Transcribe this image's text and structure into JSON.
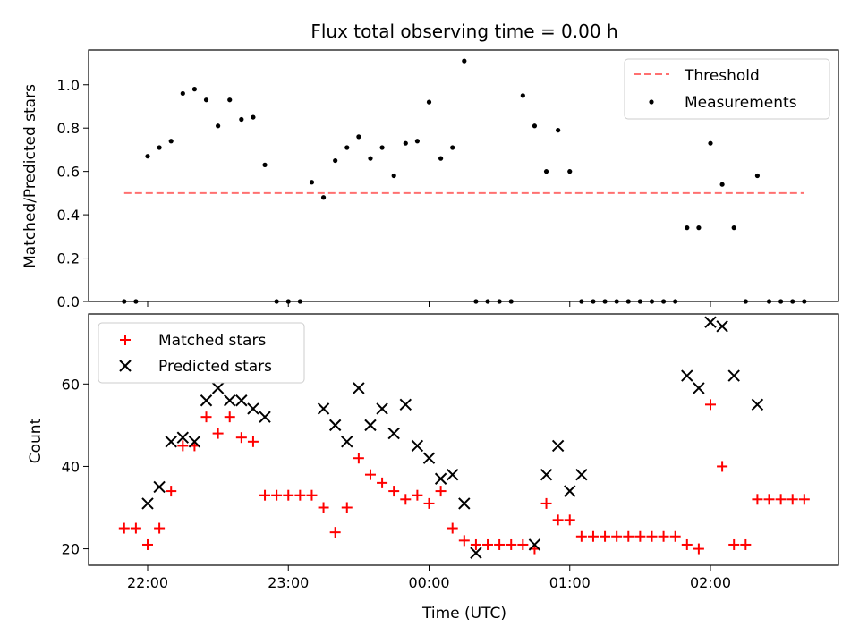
{
  "chart_data": [
    {
      "type": "scatter",
      "title": "Flux total observing time = 0.00 h",
      "xlabel": "",
      "ylabel": "Matched/Predicted stars",
      "ylim": [
        0,
        1.16
      ],
      "yticks": [
        0.0,
        0.2,
        0.4,
        0.6,
        0.8,
        1.0
      ],
      "ytick_labels": [
        "0.0",
        "0.2",
        "0.4",
        "0.6",
        "0.8",
        "1.0"
      ],
      "legend_placement": "upper right",
      "threshold": {
        "name": "Threshold",
        "value": 0.5,
        "color": "#ff7070",
        "x_start": "21:50",
        "x_end": "02:40"
      },
      "series": [
        {
          "name": "Measurements",
          "color": "#000000",
          "marker": "dot",
          "x": [
            "21:50",
            "21:55",
            "22:00",
            "22:05",
            "22:10",
            "22:15",
            "22:20",
            "22:25",
            "22:30",
            "22:35",
            "22:40",
            "22:45",
            "22:50",
            "22:55",
            "23:00",
            "23:05",
            "23:10",
            "23:15",
            "23:20",
            "23:25",
            "23:30",
            "23:35",
            "23:40",
            "23:45",
            "23:50",
            "23:55",
            "00:00",
            "00:05",
            "00:10",
            "00:15",
            "00:20",
            "00:25",
            "00:30",
            "00:35",
            "00:40",
            "00:45",
            "00:50",
            "00:55",
            "01:00",
            "01:05",
            "01:10",
            "01:15",
            "01:20",
            "01:25",
            "01:30",
            "01:35",
            "01:40",
            "01:45",
            "01:50",
            "01:55",
            "02:00",
            "02:05",
            "02:10",
            "02:15",
            "02:20",
            "02:25",
            "02:30",
            "02:35",
            "02:40"
          ],
          "y": [
            0.0,
            0.0,
            0.67,
            0.71,
            0.74,
            0.96,
            0.98,
            0.93,
            0.81,
            0.93,
            0.84,
            0.85,
            0.63,
            0.0,
            0.0,
            0.0,
            0.55,
            0.48,
            0.65,
            0.71,
            0.76,
            0.66,
            0.71,
            0.58,
            0.73,
            0.74,
            0.92,
            0.66,
            0.71,
            1.11,
            0.0,
            0.0,
            0.0,
            0.0,
            0.95,
            0.81,
            0.6,
            0.79,
            0.6,
            0.0,
            0.0,
            0.0,
            0.0,
            0.0,
            0.0,
            0.0,
            0.0,
            0.0,
            0.34,
            0.34,
            0.73,
            0.54,
            0.34,
            0.0,
            0.58,
            0.0,
            0.0,
            0.0,
            0.0
          ]
        }
      ]
    },
    {
      "type": "scatter",
      "title": "",
      "xlabel": "Time (UTC)",
      "ylabel": "Count",
      "ylim": [
        16,
        77
      ],
      "yticks": [
        20,
        40,
        60
      ],
      "ytick_labels": [
        "20",
        "40",
        "60"
      ],
      "xticks": [
        "22:00",
        "23:00",
        "00:00",
        "01:00",
        "02:00"
      ],
      "xtick_labels": [
        "22:00",
        "23:00",
        "00:00",
        "01:00",
        "02:00"
      ],
      "legend_placement": "upper left",
      "series": [
        {
          "name": "Matched stars",
          "color": "#ff0000",
          "marker": "plus",
          "x": [
            "21:50",
            "21:55",
            "22:00",
            "22:05",
            "22:10",
            "22:15",
            "22:20",
            "22:25",
            "22:30",
            "22:35",
            "22:40",
            "22:45",
            "22:50",
            "22:55",
            "23:00",
            "23:05",
            "23:10",
            "23:15",
            "23:20",
            "23:25",
            "23:30",
            "23:35",
            "23:40",
            "23:45",
            "23:50",
            "23:55",
            "00:00",
            "00:05",
            "00:10",
            "00:15",
            "00:20",
            "00:25",
            "00:30",
            "00:35",
            "00:40",
            "00:45",
            "00:50",
            "00:55",
            "01:00",
            "01:05",
            "01:10",
            "01:15",
            "01:20",
            "01:25",
            "01:30",
            "01:35",
            "01:40",
            "01:45",
            "01:50",
            "01:55",
            "02:00",
            "02:05",
            "02:10",
            "02:15",
            "02:20",
            "02:25",
            "02:30",
            "02:35",
            "02:40"
          ],
          "y": [
            25,
            25,
            21,
            25,
            34,
            45,
            45,
            52,
            48,
            52,
            47,
            46,
            33,
            33,
            33,
            33,
            33,
            30,
            24,
            30,
            42,
            38,
            36,
            34,
            32,
            33,
            31,
            34,
            25,
            22,
            21,
            21,
            21,
            21,
            21,
            20,
            31,
            27,
            27,
            23,
            23,
            23,
            23,
            23,
            23,
            23,
            23,
            23,
            21,
            20,
            55,
            40,
            21,
            21,
            32,
            32,
            32,
            32,
            32
          ]
        },
        {
          "name": "Predicted stars",
          "color": "#000000",
          "marker": "x",
          "x": [
            "22:00",
            "22:05",
            "22:10",
            "22:15",
            "22:20",
            "22:25",
            "22:30",
            "22:35",
            "22:40",
            "22:45",
            "22:50",
            "23:15",
            "23:20",
            "23:25",
            "23:30",
            "23:35",
            "23:40",
            "23:45",
            "23:50",
            "23:55",
            "00:00",
            "00:05",
            "00:10",
            "00:15",
            "00:20",
            "00:45",
            "00:50",
            "00:55",
            "01:00",
            "01:05",
            "01:50",
            "01:55",
            "02:00",
            "02:05",
            "02:10",
            "02:20"
          ],
          "y": [
            31,
            35,
            46,
            47,
            46,
            56,
            59,
            56,
            56,
            54,
            52,
            54,
            50,
            46,
            59,
            50,
            54,
            48,
            55,
            45,
            42,
            37,
            38,
            31,
            19,
            21,
            38,
            45,
            34,
            38,
            62,
            59,
            75,
            74,
            62,
            55
          ]
        }
      ]
    }
  ]
}
